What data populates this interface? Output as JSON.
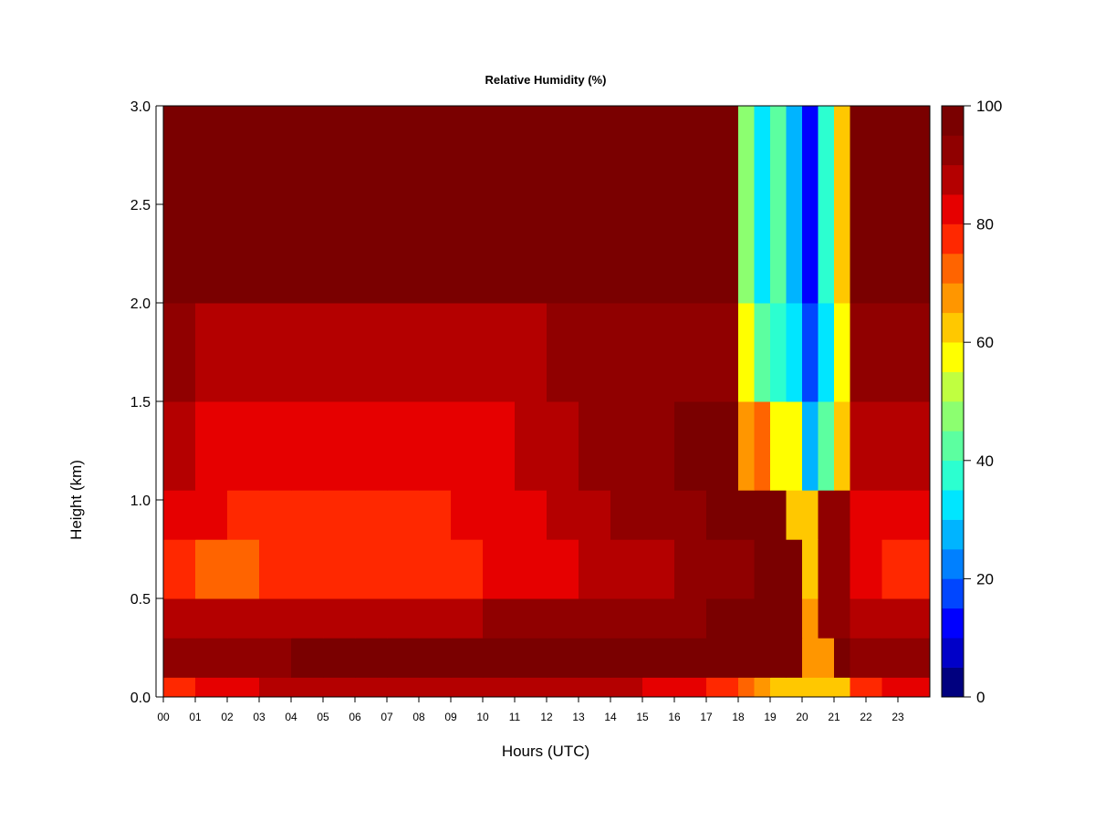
{
  "chart_data": {
    "type": "heatmap",
    "title": "Relative Humidity (%)",
    "xlabel": "Hours (UTC)",
    "ylabel": "Height (km)",
    "xlim": [
      0,
      24
    ],
    "ylim": [
      0,
      3.0
    ],
    "x_tick_labels": [
      "00",
      "01",
      "02",
      "03",
      "04",
      "05",
      "06",
      "07",
      "08",
      "09",
      "10",
      "11",
      "12",
      "13",
      "14",
      "15",
      "16",
      "17",
      "18",
      "19",
      "20",
      "21",
      "22",
      "23"
    ],
    "y_tick_labels": [
      "0.0",
      "0.5",
      "1.0",
      "1.5",
      "2.0",
      "2.5",
      "3.0"
    ],
    "colorbar": {
      "range": [
        0,
        100
      ],
      "tick_labels": [
        "0",
        "20",
        "40",
        "60",
        "80",
        "100"
      ],
      "levels": [
        0,
        5,
        10,
        15,
        20,
        25,
        30,
        35,
        40,
        45,
        50,
        55,
        60,
        65,
        70,
        75,
        80,
        85,
        90,
        95,
        100
      ],
      "colors": [
        "#00007f",
        "#0000c8",
        "#0000ff",
        "#0046ff",
        "#0080ff",
        "#00b4ff",
        "#00e6ff",
        "#2cffd0",
        "#5cffa0",
        "#8cff70",
        "#c0ff40",
        "#ffff00",
        "#ffc800",
        "#ff9600",
        "#ff6400",
        "#ff2800",
        "#e60000",
        "#b40000",
        "#900000",
        "#7a0000"
      ]
    },
    "heights_km": [
      0.05,
      0.2,
      0.4,
      0.65,
      0.9,
      1.25,
      1.75,
      2.5
    ],
    "height_edges_km": [
      0.0,
      0.1,
      0.3,
      0.5,
      0.8,
      1.05,
      1.5,
      2.0,
      3.0
    ],
    "hours": [
      0,
      1,
      2,
      3,
      4,
      5,
      6,
      7,
      8,
      9,
      10,
      11,
      12,
      13,
      14,
      15,
      16,
      17,
      18,
      18.5,
      19,
      19.5,
      20,
      20.5,
      21,
      22,
      23
    ],
    "hour_edges": [
      0,
      1,
      2,
      3,
      4,
      5,
      6,
      7,
      8,
      9,
      10,
      11,
      12,
      13,
      14,
      15,
      16,
      17,
      18,
      18.5,
      19,
      19.5,
      20,
      20.5,
      21,
      21.5,
      22.5,
      24
    ],
    "rh_percent_by_height": [
      [
        78,
        82,
        84,
        85,
        85,
        85,
        86,
        86,
        87,
        88,
        88,
        88,
        88,
        87,
        86,
        84,
        82,
        78,
        70,
        65,
        62,
        60,
        60,
        60,
        62,
        78,
        80
      ],
      [
        90,
        92,
        93,
        94,
        95,
        95,
        95,
        95,
        95,
        95,
        96,
        97,
        97,
        96,
        96,
        95,
        96,
        97,
        97,
        97,
        97,
        95,
        65,
        65,
        95,
        92,
        90
      ],
      [
        85,
        85,
        86,
        87,
        87,
        87,
        87,
        88,
        88,
        88,
        90,
        92,
        92,
        92,
        93,
        93,
        94,
        95,
        96,
        96,
        96,
        95,
        66,
        92,
        94,
        88,
        86
      ],
      [
        76,
        74,
        74,
        75,
        75,
        75,
        75,
        76,
        76,
        78,
        80,
        82,
        84,
        85,
        86,
        88,
        90,
        92,
        94,
        95,
        96,
        95,
        62,
        92,
        94,
        80,
        78
      ],
      [
        82,
        80,
        79,
        78,
        78,
        78,
        78,
        78,
        79,
        80,
        82,
        84,
        86,
        88,
        90,
        92,
        94,
        95,
        96,
        96,
        96,
        62,
        60,
        93,
        94,
        84,
        82
      ],
      [
        88,
        84,
        82,
        80,
        80,
        80,
        80,
        80,
        81,
        82,
        84,
        86,
        88,
        90,
        92,
        93,
        95,
        96,
        68,
        72,
        58,
        55,
        28,
        40,
        62,
        86,
        86
      ],
      [
        90,
        88,
        86,
        86,
        86,
        86,
        86,
        86,
        86,
        87,
        88,
        89,
        90,
        90,
        90,
        90,
        92,
        94,
        55,
        40,
        35,
        30,
        15,
        30,
        55,
        90,
        90
      ],
      [
        98,
        98,
        98,
        98,
        98,
        98,
        98,
        98,
        98,
        98,
        98,
        98,
        98,
        98,
        98,
        98,
        98,
        98,
        45,
        30,
        40,
        25,
        10,
        35,
        60,
        98,
        98
      ]
    ]
  }
}
